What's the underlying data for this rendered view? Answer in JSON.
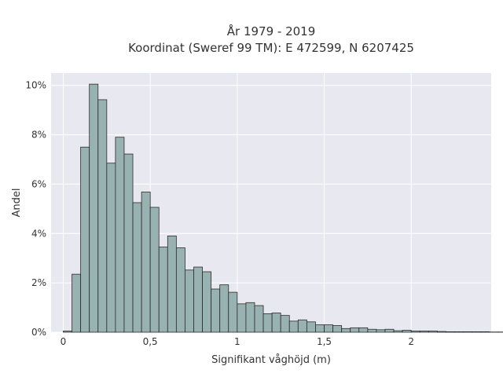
{
  "chart_data": {
    "type": "bar",
    "title_lines": [
      "År 1979 - 2019",
      "Koordinat (Sweref 99 TM): E 472599, N 6207425"
    ],
    "xlabel": "Signifikant våghöjd (m)",
    "ylabel": "Andel",
    "xlim": [
      -0.07,
      2.46
    ],
    "ylim": [
      0,
      10.5
    ],
    "x_ticks": [
      {
        "value": 0,
        "label": "0"
      },
      {
        "value": 0.5,
        "label": "0,5"
      },
      {
        "value": 1,
        "label": "1"
      },
      {
        "value": 1.5,
        "label": "1,5"
      },
      {
        "value": 2,
        "label": "2"
      }
    ],
    "y_ticks": [
      {
        "value": 0,
        "label": "0%"
      },
      {
        "value": 2,
        "label": "2%"
      },
      {
        "value": 4,
        "label": "4%"
      },
      {
        "value": 6,
        "label": "6%"
      },
      {
        "value": 8,
        "label": "8%"
      },
      {
        "value": 10,
        "label": "10%"
      }
    ],
    "grid": true,
    "plot_background": "#e8e8f0",
    "bar_color": "#98b2b1",
    "bar_edge_color": "#2b2b2b",
    "bin_width": 0.05,
    "bin_start": 0,
    "values": [
      0.05,
      2.35,
      7.5,
      10.05,
      9.42,
      6.85,
      7.9,
      7.22,
      5.25,
      5.68,
      5.06,
      3.45,
      3.9,
      3.42,
      2.52,
      2.64,
      2.45,
      1.75,
      1.92,
      1.62,
      1.15,
      1.2,
      1.08,
      0.75,
      0.78,
      0.68,
      0.45,
      0.5,
      0.42,
      0.3,
      0.3,
      0.27,
      0.15,
      0.18,
      0.18,
      0.12,
      0.1,
      0.12,
      0.06,
      0.08,
      0.05,
      0.05,
      0.05,
      0.03,
      0.02,
      0.02,
      0.02,
      0.02,
      0.02,
      0.01,
      0.01,
      0.01
    ]
  }
}
